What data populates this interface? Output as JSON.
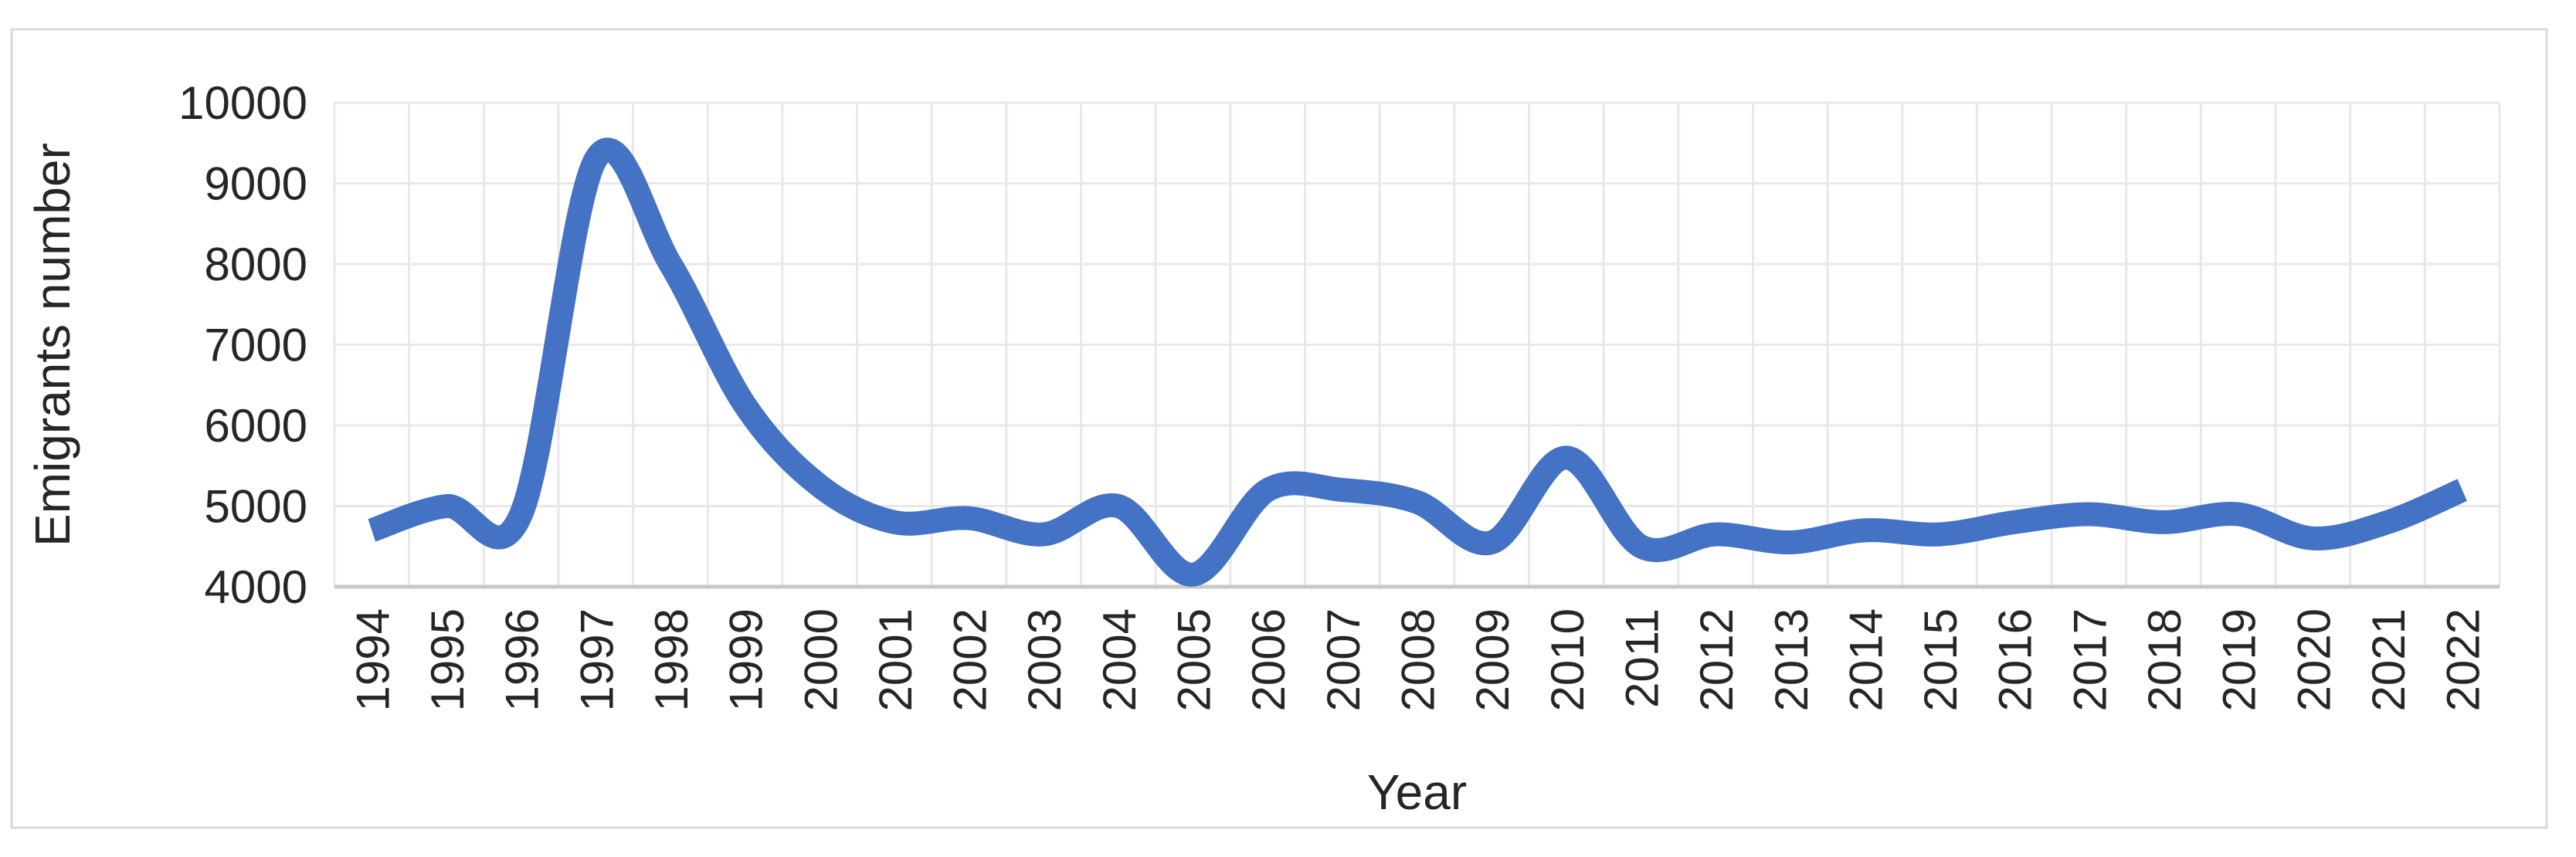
{
  "figure": {
    "background": "#FFFFFF",
    "border_color": "#D9D9D9"
  },
  "chart_data": {
    "type": "line",
    "title": "",
    "xlabel": "Year",
    "ylabel": "Emigrants number",
    "categories": [
      1994,
      1995,
      1996,
      1997,
      1998,
      1999,
      2000,
      2001,
      2002,
      2003,
      2004,
      2005,
      2006,
      2007,
      2008,
      2009,
      2010,
      2011,
      2012,
      2013,
      2014,
      2015,
      2016,
      2017,
      2018,
      2019,
      2020,
      2021,
      2022
    ],
    "values": [
      4700,
      5000,
      4900,
      9300,
      8000,
      6250,
      5250,
      4800,
      4850,
      4650,
      5000,
      4150,
      5200,
      5200,
      5050,
      4550,
      5600,
      4500,
      4650,
      4550,
      4700,
      4650,
      4800,
      4900,
      4800,
      4900,
      4600,
      4800,
      5200
    ],
    "ylim": [
      4000,
      10000
    ],
    "yticks": [
      4000,
      5000,
      6000,
      7000,
      8000,
      9000,
      10000
    ],
    "grid": "on",
    "legend": "none",
    "smooth": true,
    "line_color": "#4472C4",
    "gridline_color": "#E8E8E8",
    "axis_line_color": "#C9C9C9",
    "label_color": "#262626"
  }
}
